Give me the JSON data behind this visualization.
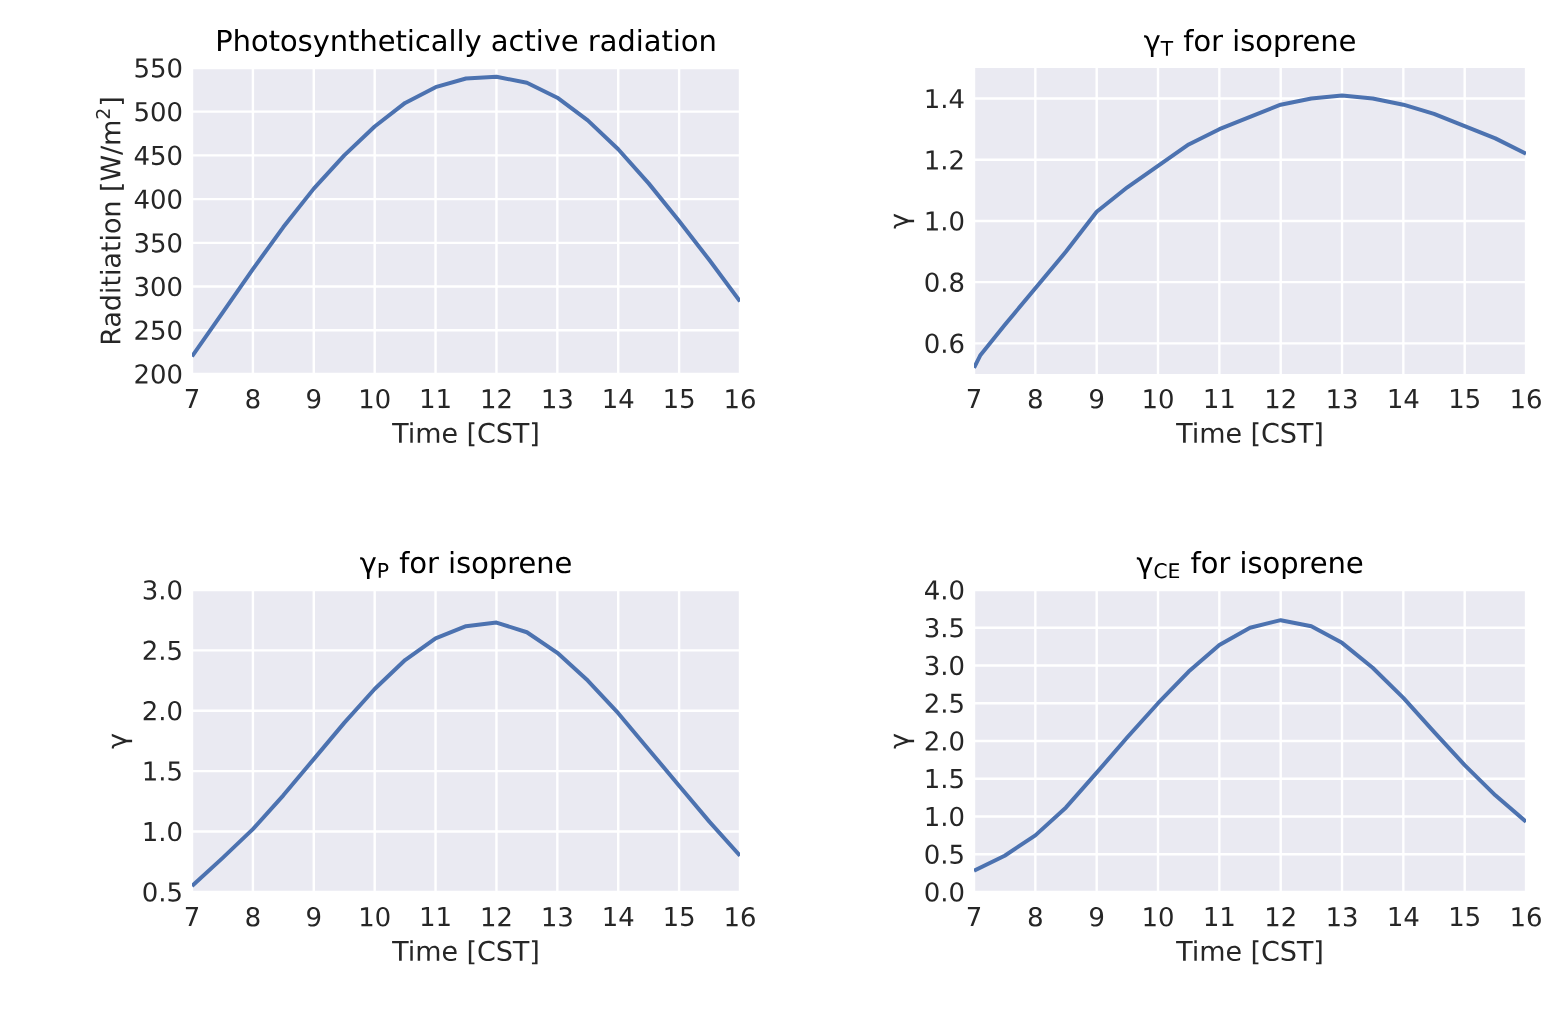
{
  "chart_data": [
    {
      "type": "line",
      "title": "Photosynthetically active radiation",
      "xlabel": "Time [CST]",
      "ylabel": "Raditiation [W/m$^{2}$]",
      "color": "#4c72b0",
      "grid": true,
      "xlim": [
        7,
        16
      ],
      "ylim": [
        200,
        550
      ],
      "xticks": [
        7,
        8,
        9,
        10,
        11,
        12,
        13,
        14,
        15,
        16
      ],
      "yticks": [
        200,
        250,
        300,
        350,
        400,
        450,
        500,
        550
      ],
      "x": [
        7,
        7.5,
        8,
        8.5,
        9,
        9.5,
        10,
        10.5,
        11,
        11.5,
        12,
        12.5,
        13,
        13.5,
        14,
        14.5,
        15,
        15.5,
        16
      ],
      "values": [
        220,
        270,
        320,
        368,
        412,
        450,
        483,
        510,
        528,
        538,
        540,
        533,
        516,
        490,
        457,
        418,
        375,
        330,
        283
      ]
    },
    {
      "type": "line",
      "title": "γ$_{T}$ for isoprene",
      "xlabel": "Time [CST]",
      "ylabel": "γ",
      "color": "#4c72b0",
      "grid": true,
      "xlim": [
        7,
        16
      ],
      "ylim": [
        0.5,
        1.5
      ],
      "xticks": [
        7,
        8,
        9,
        10,
        11,
        12,
        13,
        14,
        15,
        16
      ],
      "yticks": [
        0.6,
        0.8,
        {
          "value": 1,
          "label": "1.0"
        },
        1.2,
        1.4
      ],
      "x": [
        7,
        7.1,
        7.5,
        8,
        8.5,
        9,
        9.5,
        10,
        10.5,
        11,
        11.5,
        12,
        12.5,
        13,
        13.5,
        14,
        14.5,
        15,
        15.5,
        16
      ],
      "values": [
        0.52,
        0.56,
        0.66,
        0.78,
        0.9,
        1.03,
        1.11,
        1.18,
        1.25,
        1.3,
        1.34,
        1.38,
        1.4,
        1.41,
        1.4,
        1.38,
        1.35,
        1.31,
        1.27,
        1.22
      ]
    },
    {
      "type": "line",
      "title": "γ$_{P}$ for isoprene",
      "xlabel": "Time [CST]",
      "ylabel": "γ",
      "color": "#4c72b0",
      "grid": true,
      "xlim": [
        7,
        16
      ],
      "ylim": [
        0.5,
        3.0
      ],
      "xticks": [
        7,
        8,
        9,
        10,
        11,
        12,
        13,
        14,
        15,
        16
      ],
      "yticks": [
        0.5,
        {
          "value": 1,
          "label": "1.0"
        },
        1.5,
        {
          "value": 2,
          "label": "2.0"
        },
        2.5,
        {
          "value": 3,
          "label": "3.0"
        }
      ],
      "x": [
        7,
        7.5,
        8,
        8.5,
        9,
        9.5,
        10,
        10.5,
        11,
        11.5,
        12,
        12.5,
        13,
        13.5,
        14,
        14.5,
        15,
        15.5,
        16
      ],
      "values": [
        0.55,
        0.78,
        1.02,
        1.3,
        1.6,
        1.9,
        2.18,
        2.42,
        2.6,
        2.7,
        2.73,
        2.65,
        2.48,
        2.25,
        1.98,
        1.68,
        1.38,
        1.08,
        0.8
      ]
    },
    {
      "type": "line",
      "title": "γ$_{CE}$ for isoprene",
      "xlabel": "Time [CST]",
      "ylabel": "γ",
      "color": "#4c72b0",
      "grid": true,
      "xlim": [
        7,
        16
      ],
      "ylim": [
        0.0,
        4.0
      ],
      "xticks": [
        7,
        8,
        9,
        10,
        11,
        12,
        13,
        14,
        15,
        16
      ],
      "yticks": [
        {
          "value": 0,
          "label": "0.0"
        },
        0.5,
        {
          "value": 1,
          "label": "1.0"
        },
        1.5,
        {
          "value": 2,
          "label": "2.0"
        },
        2.5,
        {
          "value": 3,
          "label": "3.0"
        },
        3.5,
        {
          "value": 4,
          "label": "4.0"
        }
      ],
      "x": [
        7,
        7.5,
        8,
        8.5,
        9,
        9.5,
        10,
        10.5,
        11,
        11.5,
        12,
        12.5,
        13,
        13.5,
        14,
        14.5,
        15,
        15.5,
        16
      ],
      "values": [
        0.28,
        0.48,
        0.75,
        1.12,
        1.58,
        2.05,
        2.5,
        2.92,
        3.27,
        3.5,
        3.6,
        3.52,
        3.3,
        2.97,
        2.57,
        2.12,
        1.68,
        1.28,
        0.93
      ]
    }
  ]
}
